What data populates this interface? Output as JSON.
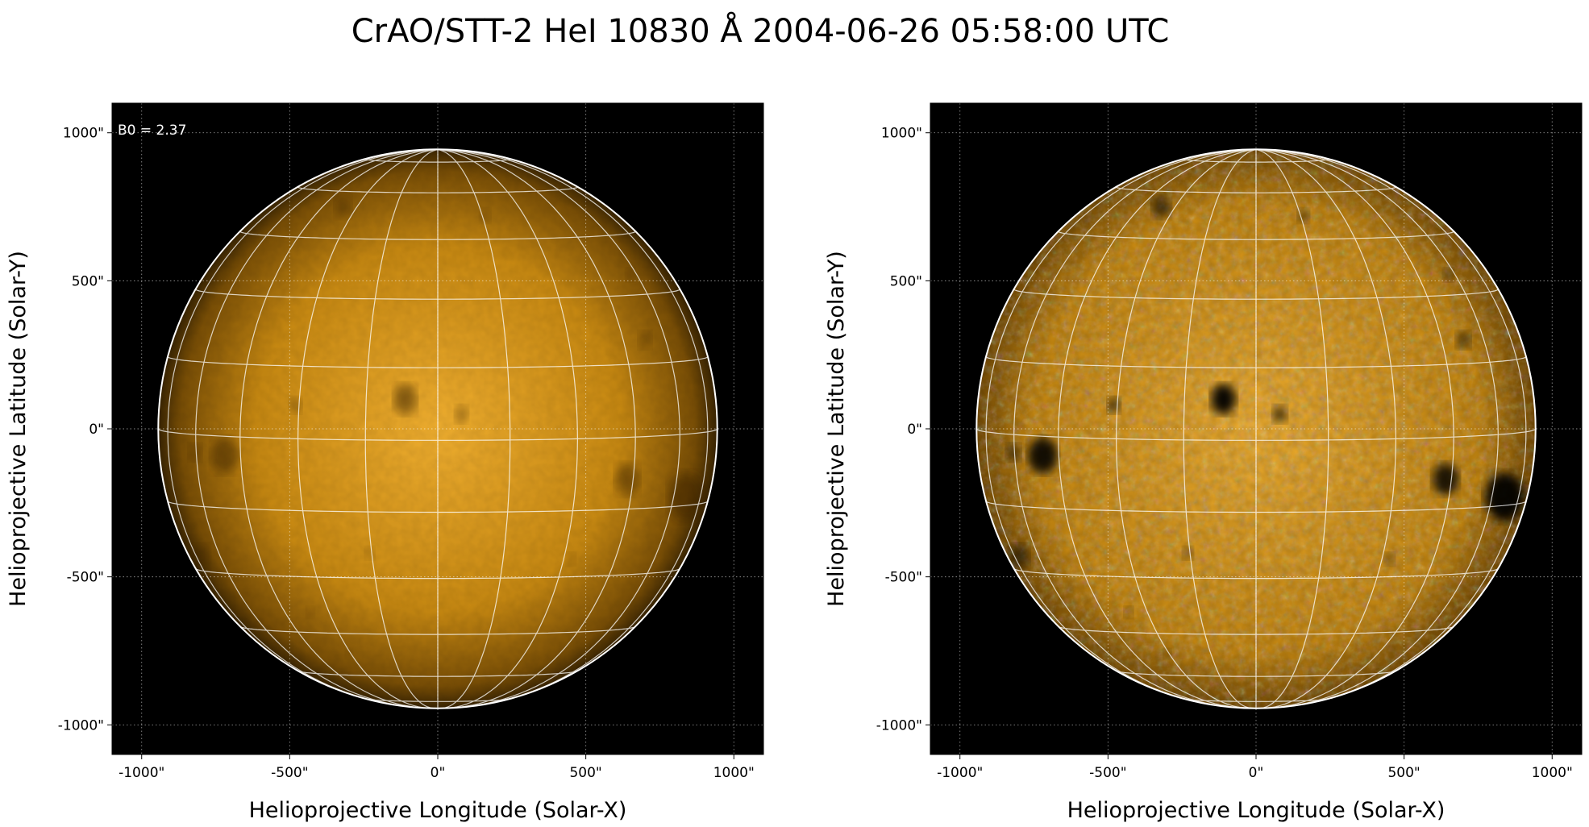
{
  "figure": {
    "title": "CrAO/STT-2 HeI 10830 Å 2004-06-26 05:58:00 UTC",
    "background": "#ffffff"
  },
  "colors": {
    "sky": "#000000",
    "disk_dark": "#7a4f06",
    "disk_mid": "#c98a12",
    "disk_bright": "#f2b030",
    "grid_lines": "#ffffff",
    "limb": "#ffffff"
  },
  "panels": [
    {
      "id": "left",
      "variant": "raw",
      "annotation": "B0 = 2.37",
      "xlabel": "Helioprojective Longitude (Solar-X)",
      "ylabel": "Helioprojective Latitude (Solar-Y)",
      "xticks": [
        "-1000\"",
        "-500\"",
        "0\"",
        "500\"",
        "1000\""
      ],
      "yticks": [
        "1000\"",
        "500\"",
        "0\"",
        "-500\"",
        "-1000\""
      ]
    },
    {
      "id": "right",
      "variant": "enhanced",
      "annotation": "",
      "xlabel": "Helioprojective Longitude (Solar-X)",
      "ylabel": "Helioprojective Latitude (Solar-Y)",
      "xticks": [
        "-1000\"",
        "-500\"",
        "0\"",
        "500\"",
        "1000\""
      ],
      "yticks": [
        "1000\"",
        "500\"",
        "0\"",
        "-500\"",
        "-1000\""
      ]
    }
  ],
  "chart_data": {
    "type": "heatmap",
    "title": "CrAO/STT-2 HeI 10830 Å 2004-06-26 05:58:00 UTC",
    "xlabel": "Helioprojective Longitude (Solar-X)",
    "ylabel": "Helioprojective Latitude (Solar-Y)",
    "xlim": [
      -1100,
      1100
    ],
    "ylim": [
      -1100,
      1100
    ],
    "tick_values": [
      -1000,
      -500,
      0,
      500,
      1000
    ],
    "solar_radius_arcsec": 944,
    "b0_deg": 2.37,
    "grid": true,
    "heliographic_grid_spacing_deg": 15,
    "dark_features": [
      {
        "x": -110,
        "y": 100,
        "r": 38,
        "strength": 0.9
      },
      {
        "x": 80,
        "y": 50,
        "r": 22,
        "strength": 0.6
      },
      {
        "x": -480,
        "y": 80,
        "r": 20,
        "strength": 0.6
      },
      {
        "x": -720,
        "y": -90,
        "r": 45,
        "strength": 0.85
      },
      {
        "x": -820,
        "y": -80,
        "r": 22,
        "strength": 0.5
      },
      {
        "x": 640,
        "y": -170,
        "r": 40,
        "strength": 0.8
      },
      {
        "x": 840,
        "y": -230,
        "r": 60,
        "strength": 0.9
      },
      {
        "x": 700,
        "y": 300,
        "r": 22,
        "strength": 0.5
      },
      {
        "x": -320,
        "y": 750,
        "r": 28,
        "strength": 0.55
      },
      {
        "x": 160,
        "y": 720,
        "r": 18,
        "strength": 0.45
      },
      {
        "x": -230,
        "y": -420,
        "r": 16,
        "strength": 0.4
      },
      {
        "x": 450,
        "y": -440,
        "r": 16,
        "strength": 0.4
      },
      {
        "x": -430,
        "y": -620,
        "r": 14,
        "strength": 0.35
      },
      {
        "x": -300,
        "y": -760,
        "r": 12,
        "strength": 0.35
      },
      {
        "x": -800,
        "y": -430,
        "r": 30,
        "strength": 0.5
      },
      {
        "x": 650,
        "y": 520,
        "r": 16,
        "strength": 0.4
      }
    ]
  }
}
